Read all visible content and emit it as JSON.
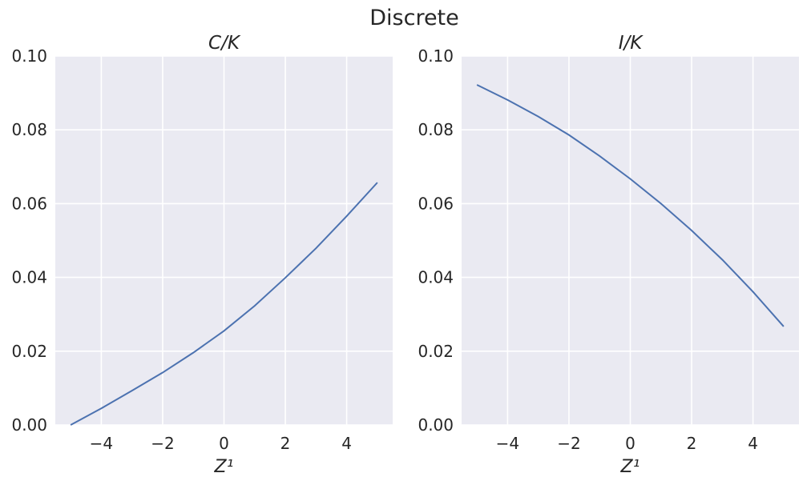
{
  "figure": {
    "suptitle": "Discrete",
    "colors": {
      "background": "#eaeaf2",
      "grid": "#ffffff",
      "line": "#4c72b0",
      "text": "#262626"
    }
  },
  "chart_data": [
    {
      "type": "line",
      "title": "C/K",
      "xlabel": "Z¹",
      "ylabel": "",
      "xlim": [
        -5.5,
        5.5
      ],
      "ylim": [
        0,
        0.1
      ],
      "xticks": [
        "−4",
        "−2",
        "0",
        "2",
        "4"
      ],
      "xtick_values": [
        -4,
        -2,
        0,
        2,
        4
      ],
      "yticks": [
        "0.00",
        "0.02",
        "0.04",
        "0.06",
        "0.08",
        "0.10"
      ],
      "ytick_values": [
        0,
        0.02,
        0.04,
        0.06,
        0.08,
        0.1
      ],
      "grid": true,
      "series": [
        {
          "x": [
            -5,
            -4,
            -3,
            -2,
            -1,
            0,
            1,
            2,
            3,
            4,
            5
          ],
          "y": [
            0.0,
            0.0045,
            0.0093,
            0.0142,
            0.0196,
            0.0255,
            0.0323,
            0.0399,
            0.0479,
            0.0566,
            0.0657
          ]
        }
      ]
    },
    {
      "type": "line",
      "title": "I/K",
      "xlabel": "Z¹",
      "ylabel": "",
      "xlim": [
        -5.5,
        5.5
      ],
      "ylim": [
        0,
        0.1
      ],
      "xticks": [
        "−4",
        "−2",
        "0",
        "2",
        "4"
      ],
      "xtick_values": [
        -4,
        -2,
        0,
        2,
        4
      ],
      "yticks": [
        "0.00",
        "0.02",
        "0.04",
        "0.06",
        "0.08",
        "0.10"
      ],
      "ytick_values": [
        0,
        0.02,
        0.04,
        0.06,
        0.08,
        0.1
      ],
      "grid": true,
      "series": [
        {
          "x": [
            -5,
            -4,
            -3,
            -2,
            -1,
            0,
            1,
            2,
            3,
            4,
            5
          ],
          "y": [
            0.0922,
            0.0881,
            0.0836,
            0.0786,
            0.0729,
            0.0667,
            0.06,
            0.0527,
            0.0448,
            0.0361,
            0.0267
          ]
        }
      ]
    }
  ]
}
